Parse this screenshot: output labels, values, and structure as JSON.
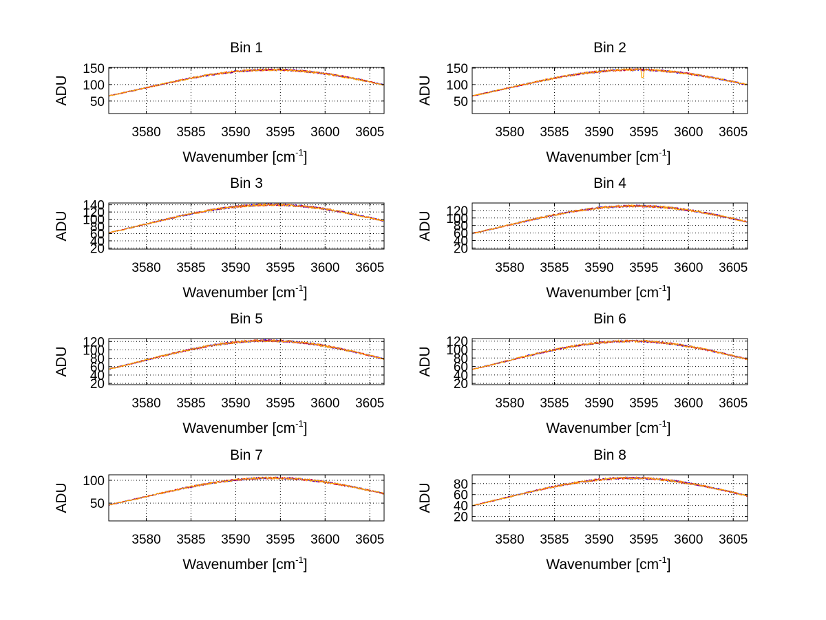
{
  "figure": {
    "background": "#ffffff",
    "trace_colors": [
      "#0000ff",
      "#ff0000",
      "#800080",
      "#ffa500"
    ]
  },
  "chart_data": [
    {
      "type": "line",
      "title": "Bin 1",
      "xlabel": "Wavenumber [cm",
      "xlabel_sup": "-1",
      "xlabel_close": "]",
      "ylabel": "ADU",
      "xlim": [
        3575.8,
        3606.6
      ],
      "ylim": [
        12,
        152
      ],
      "xticks": [
        3580,
        3585,
        3590,
        3595,
        3600,
        3605
      ],
      "yticks": [
        50,
        100,
        150
      ],
      "curve": {
        "center": 3594,
        "peak": 145,
        "width": 20.4,
        "dip_at": null,
        "dip_depth": 0
      },
      "grid": true
    },
    {
      "type": "line",
      "title": "Bin 2",
      "xlabel": "Wavenumber [cm",
      "xlabel_sup": "-1",
      "xlabel_close": "]",
      "ylabel": "ADU",
      "xlim": [
        3575.8,
        3606.6
      ],
      "ylim": [
        12,
        152
      ],
      "xticks": [
        3580,
        3585,
        3590,
        3595,
        3600,
        3605
      ],
      "yticks": [
        50,
        100,
        150
      ],
      "curve": {
        "center": 3594,
        "peak": 145,
        "width": 20.4,
        "dip_at": 3594.9,
        "dip_depth": 25
      },
      "grid": true
    },
    {
      "type": "line",
      "title": "Bin 3",
      "xlabel": "Wavenumber [cm",
      "xlabel_sup": "-1",
      "xlabel_close": "]",
      "ylabel": "ADU",
      "xlim": [
        3575.8,
        3606.6
      ],
      "ylim": [
        17,
        145
      ],
      "xticks": [
        3580,
        3585,
        3590,
        3595,
        3600,
        3605
      ],
      "yticks": [
        20,
        40,
        60,
        80,
        100,
        120,
        140
      ],
      "curve": {
        "center": 3594,
        "peak": 140,
        "width": 20.2,
        "dip_at": null,
        "dip_depth": 0
      },
      "grid": true
    },
    {
      "type": "line",
      "title": "Bin 4",
      "xlabel": "Wavenumber [cm",
      "xlabel_sup": "-1",
      "xlabel_close": "]",
      "ylabel": "ADU",
      "xlim": [
        3575.8,
        3606.6
      ],
      "ylim": [
        17,
        140
      ],
      "xticks": [
        3580,
        3585,
        3590,
        3595,
        3600,
        3605
      ],
      "yticks": [
        20,
        40,
        60,
        80,
        100,
        120
      ],
      "curve": {
        "center": 3594,
        "peak": 132,
        "width": 20.2,
        "dip_at": null,
        "dip_depth": 0
      },
      "grid": true
    },
    {
      "type": "line",
      "title": "Bin 5",
      "xlabel": "Wavenumber [cm",
      "xlabel_sup": "-1",
      "xlabel_close": "]",
      "ylabel": "ADU",
      "xlim": [
        3575.8,
        3606.6
      ],
      "ylim": [
        17,
        127
      ],
      "xticks": [
        3580,
        3585,
        3590,
        3595,
        3600,
        3605
      ],
      "yticks": [
        20,
        40,
        60,
        80,
        100,
        120
      ],
      "curve": {
        "center": 3593.5,
        "peak": 122,
        "width": 19.6,
        "dip_at": null,
        "dip_depth": 0
      },
      "grid": true
    },
    {
      "type": "line",
      "title": "Bin 6",
      "xlabel": "Wavenumber [cm",
      "xlabel_sup": "-1",
      "xlabel_close": "]",
      "ylabel": "ADU",
      "xlim": [
        3575.8,
        3606.6
      ],
      "ylim": [
        17,
        126
      ],
      "xticks": [
        3580,
        3585,
        3590,
        3595,
        3600,
        3605
      ],
      "yticks": [
        20,
        40,
        60,
        80,
        100,
        120
      ],
      "curve": {
        "center": 3593.5,
        "peak": 120,
        "width": 19.6,
        "dip_at": null,
        "dip_depth": 0
      },
      "grid": true
    },
    {
      "type": "line",
      "title": "Bin 7",
      "xlabel": "Wavenumber [cm",
      "xlabel_sup": "-1",
      "xlabel_close": "]",
      "ylabel": "ADU",
      "xlim": [
        3575.8,
        3606.6
      ],
      "ylim": [
        11,
        112
      ],
      "xticks": [
        3580,
        3585,
        3590,
        3595,
        3600,
        3605
      ],
      "yticks": [
        50,
        100
      ],
      "curve": {
        "center": 3594,
        "peak": 105,
        "width": 20.0,
        "dip_at": null,
        "dip_depth": 0
      },
      "grid": true
    },
    {
      "type": "line",
      "title": "Bin 8",
      "xlabel": "Wavenumber [cm",
      "xlabel_sup": "-1",
      "xlabel_close": "]",
      "ylabel": "ADU",
      "xlim": [
        3575.8,
        3606.6
      ],
      "ylim": [
        12,
        96
      ],
      "xticks": [
        3580,
        3585,
        3590,
        3595,
        3600,
        3605
      ],
      "yticks": [
        20,
        40,
        60,
        80
      ],
      "curve": {
        "center": 3593.5,
        "peak": 90,
        "width": 19.6,
        "dip_at": null,
        "dip_depth": 0
      },
      "grid": true
    }
  ]
}
